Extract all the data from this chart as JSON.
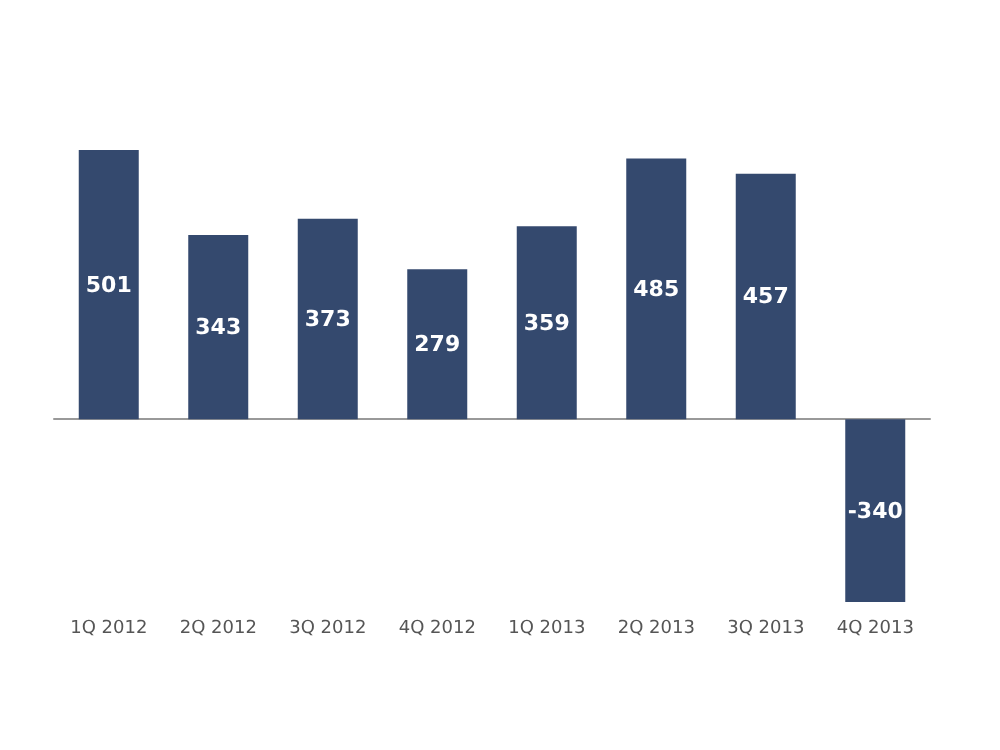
{
  "chart_data": {
    "type": "bar",
    "categories": [
      "1Q 2012",
      "2Q 2012",
      "3Q 2012",
      "4Q 2012",
      "1Q 2013",
      "2Q 2013",
      "3Q 2013",
      "4Q 2013"
    ],
    "values": [
      501,
      343,
      373,
      279,
      359,
      485,
      457,
      -340
    ],
    "color": "#34496e",
    "data_labels": true
  }
}
